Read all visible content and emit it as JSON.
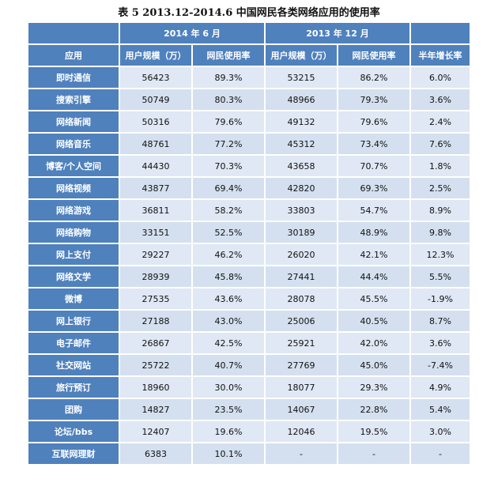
{
  "title": "表 5  2013.12-2014.6 中国网民各类网络应用的使用率",
  "header": {
    "period_a": "2014 年 6 月",
    "period_b": "2013 年 12 月",
    "col_app": "应用",
    "col_users_a": "用户规模（万）",
    "col_rate_a": "网民使用率",
    "col_users_b": "用户规模（万）",
    "col_rate_b": "网民使用率",
    "col_growth": "半年增长率"
  },
  "rows": [
    {
      "app": "即时通信",
      "users_a": "56423",
      "rate_a": "89.3%",
      "users_b": "53215",
      "rate_b": "86.2%",
      "growth": "6.0%"
    },
    {
      "app": "搜索引擎",
      "users_a": "50749",
      "rate_a": "80.3%",
      "users_b": "48966",
      "rate_b": "79.3%",
      "growth": "3.6%"
    },
    {
      "app": "网络新闻",
      "users_a": "50316",
      "rate_a": "79.6%",
      "users_b": "49132",
      "rate_b": "79.6%",
      "growth": "2.4%"
    },
    {
      "app": "网络音乐",
      "users_a": "48761",
      "rate_a": "77.2%",
      "users_b": "45312",
      "rate_b": "73.4%",
      "growth": "7.6%"
    },
    {
      "app": "博客/个人空间",
      "users_a": "44430",
      "rate_a": "70.3%",
      "users_b": "43658",
      "rate_b": "70.7%",
      "growth": "1.8%"
    },
    {
      "app": "网络视频",
      "users_a": "43877",
      "rate_a": "69.4%",
      "users_b": "42820",
      "rate_b": "69.3%",
      "growth": "2.5%"
    },
    {
      "app": "网络游戏",
      "users_a": "36811",
      "rate_a": "58.2%",
      "users_b": "33803",
      "rate_b": "54.7%",
      "growth": "8.9%"
    },
    {
      "app": "网络购物",
      "users_a": "33151",
      "rate_a": "52.5%",
      "users_b": "30189",
      "rate_b": "48.9%",
      "growth": "9.8%"
    },
    {
      "app": "网上支付",
      "users_a": "29227",
      "rate_a": "46.2%",
      "users_b": "26020",
      "rate_b": "42.1%",
      "growth": "12.3%"
    },
    {
      "app": "网络文学",
      "users_a": "28939",
      "rate_a": "45.8%",
      "users_b": "27441",
      "rate_b": "44.4%",
      "growth": "5.5%"
    },
    {
      "app": "微博",
      "users_a": "27535",
      "rate_a": "43.6%",
      "users_b": "28078",
      "rate_b": "45.5%",
      "growth": "-1.9%"
    },
    {
      "app": "网上银行",
      "users_a": "27188",
      "rate_a": "43.0%",
      "users_b": "25006",
      "rate_b": "40.5%",
      "growth": "8.7%"
    },
    {
      "app": "电子邮件",
      "users_a": "26867",
      "rate_a": "42.5%",
      "users_b": "25921",
      "rate_b": "42.0%",
      "growth": "3.6%"
    },
    {
      "app": "社交网站",
      "users_a": "25722",
      "rate_a": "40.7%",
      "users_b": "27769",
      "rate_b": "45.0%",
      "growth": "-7.4%"
    },
    {
      "app": "旅行预订",
      "users_a": "18960",
      "rate_a": "30.0%",
      "users_b": "18077",
      "rate_b": "29.3%",
      "growth": "4.9%"
    },
    {
      "app": "团购",
      "users_a": "14827",
      "rate_a": "23.5%",
      "users_b": "14067",
      "rate_b": "22.8%",
      "growth": "5.4%"
    },
    {
      "app": "论坛/bbs",
      "users_a": "12407",
      "rate_a": "19.6%",
      "users_b": "12046",
      "rate_b": "19.5%",
      "growth": "3.0%"
    },
    {
      "app": "互联网理财",
      "users_a": "6383",
      "rate_a": "10.1%",
      "users_b": "-",
      "rate_b": "-",
      "growth": "-"
    }
  ]
}
